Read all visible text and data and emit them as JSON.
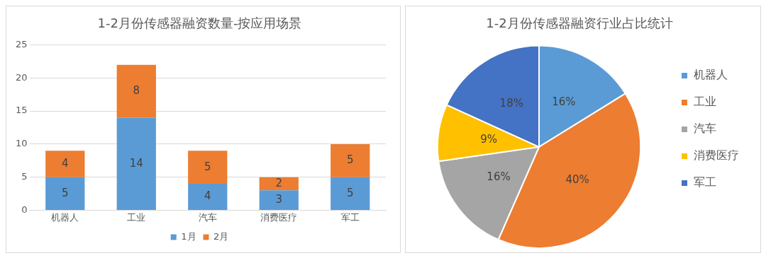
{
  "chart_data": [
    {
      "type": "bar",
      "title": "1-2月份传感器融资数量-按应用场景",
      "categories": [
        "机器人",
        "工业",
        "汽车",
        "消费医疗",
        "军工"
      ],
      "stacked": true,
      "series": [
        {
          "name": "1月",
          "color": "#5b9bd5",
          "values": [
            5,
            14,
            4,
            3,
            5
          ]
        },
        {
          "name": "2月",
          "color": "#ed7d31",
          "values": [
            4,
            8,
            5,
            2,
            5
          ]
        }
      ],
      "ylim": [
        0,
        25
      ],
      "yticks": [
        0,
        5,
        10,
        15,
        20,
        25
      ],
      "grid": "y",
      "legend": "bottom",
      "data_labels": true
    },
    {
      "type": "pie",
      "title": "1-2月份传感器融资行业占比统计",
      "categories": [
        "机器人",
        "工业",
        "汽车",
        "消费医疗",
        "军工"
      ],
      "values": [
        16,
        40,
        16,
        9,
        18
      ],
      "colors": [
        "#5b9bd5",
        "#ed7d31",
        "#a5a5a5",
        "#ffc000",
        "#4472c4"
      ],
      "value_labels": [
        "16%",
        "40%",
        "16%",
        "9%",
        "18%"
      ],
      "legend": "right"
    }
  ]
}
